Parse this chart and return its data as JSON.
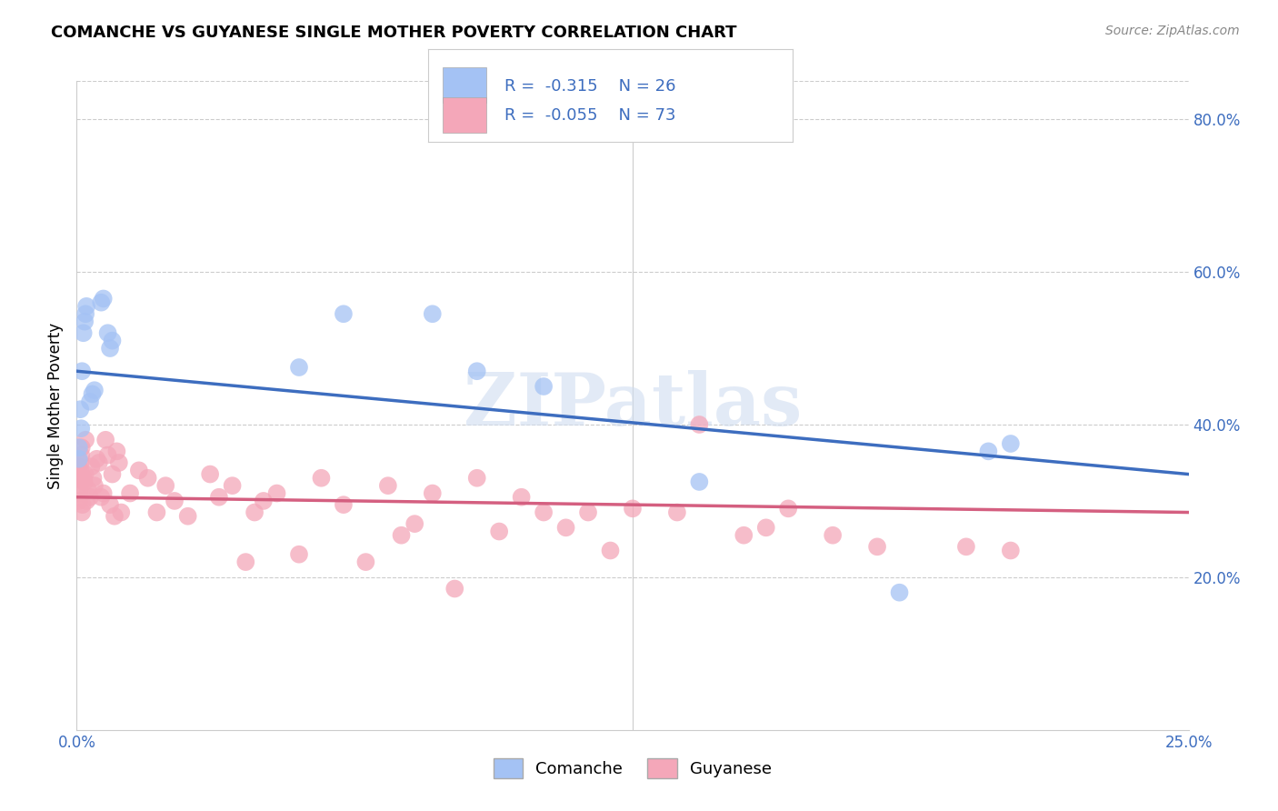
{
  "title": "COMANCHE VS GUYANESE SINGLE MOTHER POVERTY CORRELATION CHART",
  "source": "Source: ZipAtlas.com",
  "ylabel": "Single Mother Poverty",
  "x_min": 0.0,
  "x_max": 0.25,
  "y_min": 0.0,
  "y_max": 0.85,
  "comanche_color": "#a4c2f4",
  "comanche_edge": "#a4c2f4",
  "guyanese_color": "#f4a7b9",
  "guyanese_edge": "#f4a7b9",
  "trend_comanche_color": "#3d6dbf",
  "trend_guyanese_color": "#d45f80",
  "comanche_R": -0.315,
  "comanche_N": 26,
  "guyanese_R": -0.055,
  "guyanese_N": 73,
  "watermark": "ZIPatlas",
  "comanche_x": [
    0.0005,
    0.0005,
    0.0008,
    0.001,
    0.0012,
    0.0015,
    0.0018,
    0.002,
    0.0022,
    0.003,
    0.0035,
    0.004,
    0.0055,
    0.006,
    0.007,
    0.0075,
    0.008,
    0.05,
    0.06,
    0.08,
    0.09,
    0.105,
    0.14,
    0.185,
    0.205,
    0.21
  ],
  "comanche_y": [
    0.355,
    0.37,
    0.42,
    0.395,
    0.47,
    0.52,
    0.535,
    0.545,
    0.555,
    0.43,
    0.44,
    0.445,
    0.56,
    0.565,
    0.52,
    0.5,
    0.51,
    0.475,
    0.545,
    0.545,
    0.47,
    0.45,
    0.325,
    0.18,
    0.365,
    0.375
  ],
  "guyanese_x": [
    0.0003,
    0.0004,
    0.0005,
    0.0006,
    0.0007,
    0.0008,
    0.0009,
    0.001,
    0.0011,
    0.0012,
    0.0013,
    0.0015,
    0.0017,
    0.0019,
    0.002,
    0.0022,
    0.0025,
    0.003,
    0.0033,
    0.0037,
    0.004,
    0.0045,
    0.005,
    0.0055,
    0.006,
    0.0065,
    0.007,
    0.0075,
    0.008,
    0.0085,
    0.009,
    0.0095,
    0.01,
    0.012,
    0.014,
    0.016,
    0.018,
    0.02,
    0.022,
    0.025,
    0.03,
    0.032,
    0.035,
    0.038,
    0.04,
    0.042,
    0.045,
    0.05,
    0.055,
    0.06,
    0.065,
    0.07,
    0.073,
    0.076,
    0.08,
    0.085,
    0.09,
    0.095,
    0.1,
    0.105,
    0.11,
    0.115,
    0.12,
    0.125,
    0.135,
    0.14,
    0.15,
    0.155,
    0.16,
    0.17,
    0.18,
    0.2,
    0.21
  ],
  "guyanese_y": [
    0.33,
    0.345,
    0.3,
    0.31,
    0.32,
    0.34,
    0.35,
    0.36,
    0.37,
    0.285,
    0.295,
    0.33,
    0.325,
    0.335,
    0.38,
    0.3,
    0.315,
    0.305,
    0.345,
    0.33,
    0.32,
    0.355,
    0.35,
    0.305,
    0.31,
    0.38,
    0.36,
    0.295,
    0.335,
    0.28,
    0.365,
    0.35,
    0.285,
    0.31,
    0.34,
    0.33,
    0.285,
    0.32,
    0.3,
    0.28,
    0.335,
    0.305,
    0.32,
    0.22,
    0.285,
    0.3,
    0.31,
    0.23,
    0.33,
    0.295,
    0.22,
    0.32,
    0.255,
    0.27,
    0.31,
    0.185,
    0.33,
    0.26,
    0.305,
    0.285,
    0.265,
    0.285,
    0.235,
    0.29,
    0.285,
    0.4,
    0.255,
    0.265,
    0.29,
    0.255,
    0.24,
    0.24,
    0.235
  ],
  "comanche_trend_y0": 0.47,
  "comanche_trend_y1": 0.335,
  "guyanese_trend_y0": 0.305,
  "guyanese_trend_y1": 0.285,
  "right_ytick_labels": [
    "20.0%",
    "40.0%",
    "60.0%",
    "80.0%"
  ],
  "right_ytick_values": [
    0.2,
    0.4,
    0.6,
    0.8
  ],
  "x_left_label": "0.0%",
  "x_right_label": "25.0%",
  "background_color": "#ffffff",
  "grid_color": "#cccccc",
  "grid_linestyle": "--"
}
